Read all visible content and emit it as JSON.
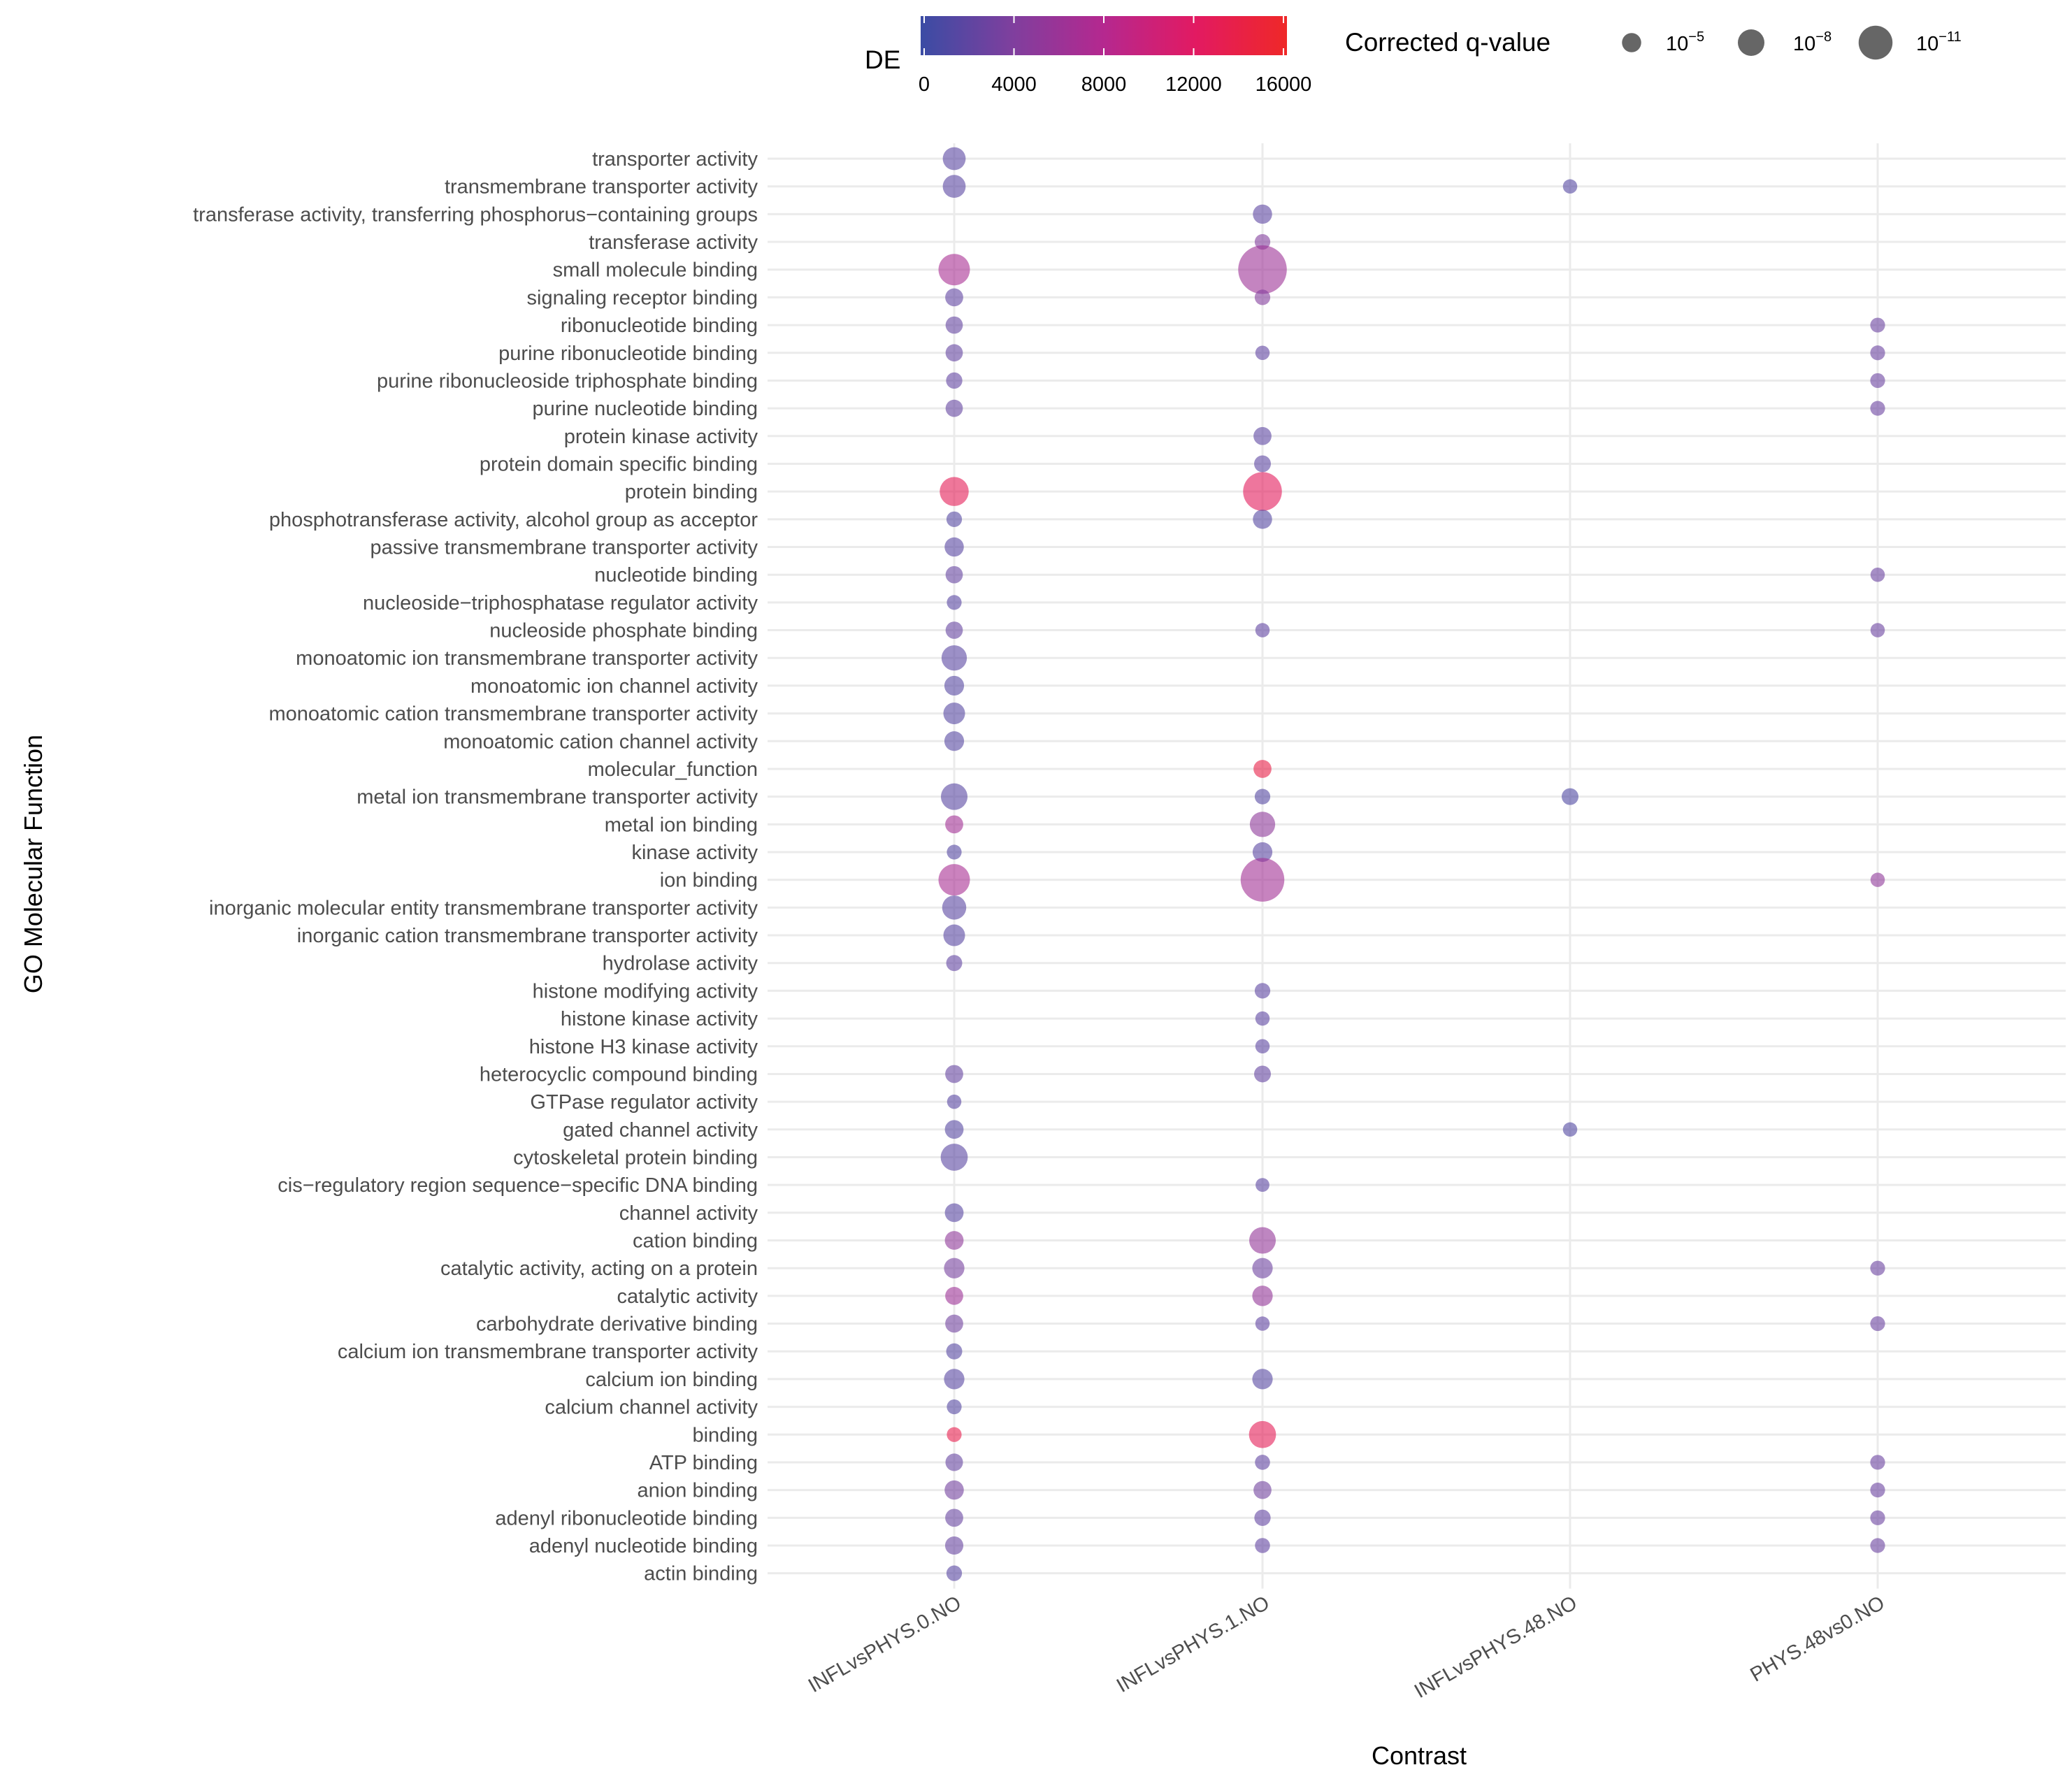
{
  "chart_data": {
    "type": "scatter",
    "subtype": "dot-plot",
    "xlabel": "Contrast",
    "ylabel": "GO Molecular Function",
    "categories_x": [
      "INFLvsPHYS.0.NO",
      "INFLvsPHYS.1.NO",
      "INFLvsPHYS.48.NO",
      "PHYS.48vs0.NO"
    ],
    "categories_y": [
      "transporter activity",
      "transmembrane transporter activity",
      "transferase activity, transferring phosphorus−containing groups",
      "transferase activity",
      "small molecule binding",
      "signaling receptor binding",
      "ribonucleotide binding",
      "purine ribonucleotide binding",
      "purine ribonucleoside triphosphate binding",
      "purine nucleotide binding",
      "protein kinase activity",
      "protein domain specific binding",
      "protein binding",
      "phosphotransferase activity, alcohol group as acceptor",
      "passive transmembrane transporter activity",
      "nucleotide binding",
      "nucleoside−triphosphatase regulator activity",
      "nucleoside phosphate binding",
      "monoatomic ion transmembrane transporter activity",
      "monoatomic ion channel activity",
      "monoatomic cation transmembrane transporter activity",
      "monoatomic cation channel activity",
      "molecular_function",
      "metal ion transmembrane transporter activity",
      "metal ion binding",
      "kinase activity",
      "ion binding",
      "inorganic molecular entity transmembrane transporter activity",
      "inorganic cation transmembrane transporter activity",
      "hydrolase activity",
      "histone modifying activity",
      "histone kinase activity",
      "histone H3 kinase activity",
      "heterocyclic compound binding",
      "GTPase regulator activity",
      "gated channel activity",
      "cytoskeletal protein binding",
      "cis−regulatory region sequence−specific DNA binding",
      "channel activity",
      "cation binding",
      "catalytic activity, acting on a protein",
      "catalytic activity",
      "carbohydrate derivative binding",
      "calcium ion transmembrane transporter activity",
      "calcium ion binding",
      "calcium channel activity",
      "binding",
      "ATP binding",
      "anion binding",
      "adenyl ribonucleotide binding",
      "adenyl nucleotide binding",
      "actin binding"
    ],
    "color_scale": {
      "title": "DE",
      "range": [
        0,
        16000
      ],
      "ticks": [
        "0",
        "4000",
        "8000",
        "12000",
        "16000"
      ],
      "colors": [
        "#3b4ca4",
        "#7f3f9e",
        "#b5288f",
        "#e21a62",
        "#ef2828"
      ]
    },
    "size_scale": {
      "title": "Corrected q-value",
      "entries": [
        {
          "base": "10",
          "exp": "−5",
          "nlog10q": 5
        },
        {
          "base": "10",
          "exp": "−8",
          "nlog10q": 8
        },
        {
          "base": "10",
          "exp": "−11",
          "nlog10q": 11
        }
      ]
    },
    "points": [
      {
        "term": 0,
        "contrast": 0,
        "de": 1800,
        "nlog10q": 6.5
      },
      {
        "term": 1,
        "contrast": 0,
        "de": 1800,
        "nlog10q": 6.5
      },
      {
        "term": 1,
        "contrast": 2,
        "de": 1500,
        "nlog10q": 3
      },
      {
        "term": 2,
        "contrast": 1,
        "de": 2000,
        "nlog10q": 5
      },
      {
        "term": 3,
        "contrast": 1,
        "de": 4200,
        "nlog10q": 3.5
      },
      {
        "term": 4,
        "contrast": 0,
        "de": 7000,
        "nlog10q": 10
      },
      {
        "term": 4,
        "contrast": 1,
        "de": 6200,
        "nlog10q": 17
      },
      {
        "term": 5,
        "contrast": 0,
        "de": 2200,
        "nlog10q": 4.5
      },
      {
        "term": 5,
        "contrast": 1,
        "de": 4300,
        "nlog10q": 3.5
      },
      {
        "term": 6,
        "contrast": 0,
        "de": 2400,
        "nlog10q": 4.2
      },
      {
        "term": 6,
        "contrast": 3,
        "de": 2800,
        "nlog10q": 3.2
      },
      {
        "term": 7,
        "contrast": 0,
        "de": 2400,
        "nlog10q": 4.2
      },
      {
        "term": 7,
        "contrast": 1,
        "de": 2200,
        "nlog10q": 3
      },
      {
        "term": 7,
        "contrast": 3,
        "de": 2800,
        "nlog10q": 3.2
      },
      {
        "term": 8,
        "contrast": 0,
        "de": 2300,
        "nlog10q": 3.8
      },
      {
        "term": 8,
        "contrast": 3,
        "de": 2800,
        "nlog10q": 3.2
      },
      {
        "term": 9,
        "contrast": 0,
        "de": 2400,
        "nlog10q": 4.2
      },
      {
        "term": 9,
        "contrast": 3,
        "de": 2800,
        "nlog10q": 3.2
      },
      {
        "term": 10,
        "contrast": 1,
        "de": 2000,
        "nlog10q": 4.5
      },
      {
        "term": 11,
        "contrast": 1,
        "de": 2000,
        "nlog10q": 4
      },
      {
        "term": 12,
        "contrast": 0,
        "de": 12800,
        "nlog10q": 9
      },
      {
        "term": 12,
        "contrast": 1,
        "de": 12400,
        "nlog10q": 13
      },
      {
        "term": 13,
        "contrast": 0,
        "de": 1500,
        "nlog10q": 3.5
      },
      {
        "term": 13,
        "contrast": 1,
        "de": 1500,
        "nlog10q": 5
      },
      {
        "term": 14,
        "contrast": 0,
        "de": 1700,
        "nlog10q": 5
      },
      {
        "term": 15,
        "contrast": 0,
        "de": 2500,
        "nlog10q": 4.2
      },
      {
        "term": 15,
        "contrast": 3,
        "de": 2800,
        "nlog10q": 3
      },
      {
        "term": 16,
        "contrast": 0,
        "de": 1700,
        "nlog10q": 3.2
      },
      {
        "term": 17,
        "contrast": 0,
        "de": 2500,
        "nlog10q": 4.2
      },
      {
        "term": 17,
        "contrast": 1,
        "de": 2200,
        "nlog10q": 3
      },
      {
        "term": 17,
        "contrast": 3,
        "de": 2800,
        "nlog10q": 3
      },
      {
        "term": 18,
        "contrast": 0,
        "de": 1800,
        "nlog10q": 7.5
      },
      {
        "term": 19,
        "contrast": 0,
        "de": 1600,
        "nlog10q": 5.2
      },
      {
        "term": 20,
        "contrast": 0,
        "de": 1600,
        "nlog10q": 6
      },
      {
        "term": 21,
        "contrast": 0,
        "de": 1600,
        "nlog10q": 5.2
      },
      {
        "term": 22,
        "contrast": 1,
        "de": 13800,
        "nlog10q": 4.5
      },
      {
        "term": 23,
        "contrast": 0,
        "de": 1700,
        "nlog10q": 8
      },
      {
        "term": 23,
        "contrast": 1,
        "de": 1500,
        "nlog10q": 3.5
      },
      {
        "term": 23,
        "contrast": 2,
        "de": 1200,
        "nlog10q": 4
      },
      {
        "term": 24,
        "contrast": 0,
        "de": 6500,
        "nlog10q": 4.5
      },
      {
        "term": 24,
        "contrast": 1,
        "de": 5000,
        "nlog10q": 7.5
      },
      {
        "term": 25,
        "contrast": 0,
        "de": 1500,
        "nlog10q": 3.2
      },
      {
        "term": 25,
        "contrast": 1,
        "de": 1800,
        "nlog10q": 5.2
      },
      {
        "term": 26,
        "contrast": 0,
        "de": 7000,
        "nlog10q": 10
      },
      {
        "term": 26,
        "contrast": 1,
        "de": 6500,
        "nlog10q": 15
      },
      {
        "term": 26,
        "contrast": 3,
        "de": 5200,
        "nlog10q": 3
      },
      {
        "term": 27,
        "contrast": 0,
        "de": 1800,
        "nlog10q": 7
      },
      {
        "term": 28,
        "contrast": 0,
        "de": 1700,
        "nlog10q": 6
      },
      {
        "term": 29,
        "contrast": 0,
        "de": 2300,
        "nlog10q": 3.7
      },
      {
        "term": 30,
        "contrast": 1,
        "de": 2000,
        "nlog10q": 3.5
      },
      {
        "term": 31,
        "contrast": 1,
        "de": 2000,
        "nlog10q": 3
      },
      {
        "term": 32,
        "contrast": 1,
        "de": 2000,
        "nlog10q": 3
      },
      {
        "term": 33,
        "contrast": 0,
        "de": 2500,
        "nlog10q": 4.5
      },
      {
        "term": 33,
        "contrast": 1,
        "de": 2400,
        "nlog10q": 4
      },
      {
        "term": 34,
        "contrast": 0,
        "de": 1700,
        "nlog10q": 3
      },
      {
        "term": 35,
        "contrast": 0,
        "de": 1600,
        "nlog10q": 4.8
      },
      {
        "term": 35,
        "contrast": 2,
        "de": 1300,
        "nlog10q": 3
      },
      {
        "term": 36,
        "contrast": 0,
        "de": 1800,
        "nlog10q": 8.2
      },
      {
        "term": 37,
        "contrast": 1,
        "de": 1900,
        "nlog10q": 2.8
      },
      {
        "term": 38,
        "contrast": 0,
        "de": 1700,
        "nlog10q": 4.8
      },
      {
        "term": 39,
        "contrast": 0,
        "de": 5200,
        "nlog10q": 4.8
      },
      {
        "term": 39,
        "contrast": 1,
        "de": 5500,
        "nlog10q": 8
      },
      {
        "term": 40,
        "contrast": 0,
        "de": 3500,
        "nlog10q": 5.5
      },
      {
        "term": 40,
        "contrast": 1,
        "de": 3000,
        "nlog10q": 5.5
      },
      {
        "term": 40,
        "contrast": 3,
        "de": 2800,
        "nlog10q": 3.2
      },
      {
        "term": 41,
        "contrast": 0,
        "de": 6200,
        "nlog10q": 4.5
      },
      {
        "term": 41,
        "contrast": 1,
        "de": 5500,
        "nlog10q": 5.5
      },
      {
        "term": 42,
        "contrast": 0,
        "de": 3200,
        "nlog10q": 4.5
      },
      {
        "term": 42,
        "contrast": 1,
        "de": 2200,
        "nlog10q": 3
      },
      {
        "term": 42,
        "contrast": 3,
        "de": 2800,
        "nlog10q": 3.2
      },
      {
        "term": 43,
        "contrast": 0,
        "de": 1600,
        "nlog10q": 3.7
      },
      {
        "term": 44,
        "contrast": 0,
        "de": 1700,
        "nlog10q": 5.5
      },
      {
        "term": 44,
        "contrast": 1,
        "de": 1600,
        "nlog10q": 5.5
      },
      {
        "term": 45,
        "contrast": 0,
        "de": 1500,
        "nlog10q": 3.2
      },
      {
        "term": 46,
        "contrast": 0,
        "de": 13400,
        "nlog10q": 3.2
      },
      {
        "term": 46,
        "contrast": 1,
        "de": 12800,
        "nlog10q": 8.2
      },
      {
        "term": 47,
        "contrast": 0,
        "de": 2500,
        "nlog10q": 4.3
      },
      {
        "term": 47,
        "contrast": 1,
        "de": 2200,
        "nlog10q": 3.3
      },
      {
        "term": 47,
        "contrast": 3,
        "de": 2800,
        "nlog10q": 3.2
      },
      {
        "term": 48,
        "contrast": 0,
        "de": 3300,
        "nlog10q": 5
      },
      {
        "term": 48,
        "contrast": 1,
        "de": 3200,
        "nlog10q": 4.5
      },
      {
        "term": 48,
        "contrast": 3,
        "de": 2800,
        "nlog10q": 3.2
      },
      {
        "term": 49,
        "contrast": 0,
        "de": 2600,
        "nlog10q": 4.5
      },
      {
        "term": 49,
        "contrast": 1,
        "de": 2300,
        "nlog10q": 3.8
      },
      {
        "term": 49,
        "contrast": 3,
        "de": 2800,
        "nlog10q": 3.2
      },
      {
        "term": 50,
        "contrast": 0,
        "de": 2600,
        "nlog10q": 4.6
      },
      {
        "term": 50,
        "contrast": 1,
        "de": 2300,
        "nlog10q": 3.3
      },
      {
        "term": 50,
        "contrast": 3,
        "de": 2800,
        "nlog10q": 3.2
      },
      {
        "term": 51,
        "contrast": 0,
        "de": 1700,
        "nlog10q": 3.5
      }
    ]
  }
}
